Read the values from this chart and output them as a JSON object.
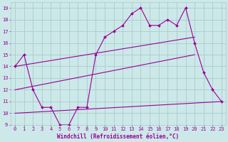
{
  "xlabel": "Windchill (Refroidissement éolien,°C)",
  "x": [
    0,
    1,
    2,
    3,
    4,
    5,
    6,
    7,
    8,
    9,
    10,
    11,
    12,
    13,
    14,
    15,
    16,
    17,
    18,
    19,
    20,
    21,
    22,
    23
  ],
  "line1": [
    14,
    15,
    12,
    10.5,
    10.5,
    9,
    9,
    10.5,
    10.5,
    15,
    16.5,
    17,
    17.5,
    18.5,
    19,
    17.5,
    17.5,
    18,
    17.5,
    19,
    16,
    13.5,
    12,
    11
  ],
  "line2_x": [
    0,
    20
  ],
  "line2_y": [
    14.0,
    16.5
  ],
  "line3_x": [
    0,
    20
  ],
  "line3_y": [
    12.0,
    15.0
  ],
  "line4_x": [
    0,
    23
  ],
  "line4_y": [
    10.0,
    11.0
  ],
  "line_color": "#990099",
  "bg_color": "#cce8e8",
  "grid_color": "#aacccc",
  "ylim": [
    9,
    19.5
  ],
  "xlim": [
    -0.5,
    23.5
  ],
  "yticks": [
    9,
    10,
    11,
    12,
    13,
    14,
    15,
    16,
    17,
    18,
    19
  ],
  "xticks": [
    0,
    1,
    2,
    3,
    4,
    5,
    6,
    7,
    8,
    9,
    10,
    11,
    12,
    13,
    14,
    15,
    16,
    17,
    18,
    19,
    20,
    21,
    22,
    23
  ],
  "tick_fontsize": 5.0,
  "xlabel_fontsize": 5.5
}
